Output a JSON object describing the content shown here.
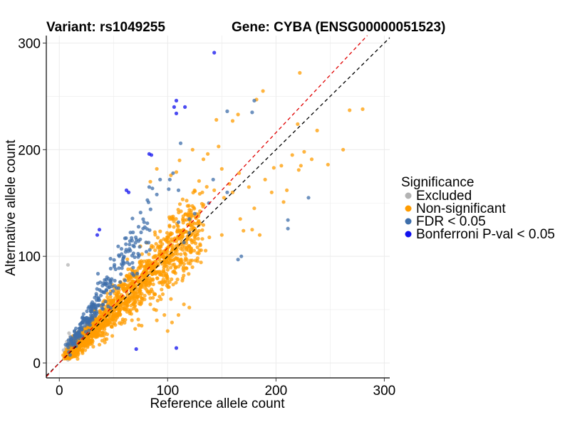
{
  "chart_data": {
    "type": "scatter",
    "title_left": "Variant: rs1049255",
    "title_right": "Gene: CYBA (ENSG00000051523)",
    "xlabel": "Reference allele count",
    "ylabel": "Alternative allele count",
    "xlim": [
      -12,
      305
    ],
    "ylim": [
      -14,
      307
    ],
    "xticks": [
      0,
      100,
      200,
      300
    ],
    "yticks": [
      0,
      100,
      200,
      300
    ],
    "grid": true,
    "legend_position": "right",
    "legend_title": "Significance",
    "reference_lines": [
      {
        "name": "identity",
        "slope": 1,
        "intercept": 0,
        "color": "#000000",
        "dash": "dashed"
      },
      {
        "name": "expected-ratio",
        "slope": 1.08,
        "intercept": 0,
        "color": "#e00000",
        "dash": "dashed"
      }
    ],
    "series": [
      {
        "name": "Excluded",
        "color": "#b3b3b3",
        "points": [
          [
            8,
            92
          ],
          [
            5,
            10
          ],
          [
            6,
            14
          ],
          [
            8,
            18
          ],
          [
            9,
            22
          ],
          [
            10,
            25
          ],
          [
            7,
            8
          ],
          [
            9,
            12
          ],
          [
            11,
            16
          ],
          [
            12,
            20
          ],
          [
            6,
            5
          ],
          [
            8,
            3
          ],
          [
            10,
            6
          ],
          [
            4,
            12
          ],
          [
            7,
            20
          ],
          [
            9,
            28
          ],
          [
            12,
            24
          ],
          [
            11,
            10
          ]
        ]
      },
      {
        "name": "Non-significant",
        "color": "#ff9c00",
        "generated": {
          "count": 1500,
          "x_range": [
            10,
            130
          ],
          "ratio_mean": 1.0,
          "ratio_sd": 0.16,
          "seed": 17
        },
        "points": [
          [
            222,
            272
          ],
          [
            220,
            224
          ],
          [
            223,
            185
          ],
          [
            280,
            238
          ],
          [
            268,
            237
          ],
          [
            262,
            200
          ],
          [
            248,
            186
          ],
          [
            238,
            218
          ],
          [
            233,
            191
          ],
          [
            221,
            181
          ],
          [
            210,
            162
          ],
          [
            207,
            151
          ],
          [
            198,
            183
          ],
          [
            188,
            255
          ],
          [
            182,
            247
          ],
          [
            165,
            233
          ],
          [
            160,
            227
          ],
          [
            145,
            228
          ],
          [
            147,
            203
          ],
          [
            137,
            196
          ],
          [
            133,
            191
          ],
          [
            123,
            200
          ],
          [
            111,
            190
          ],
          [
            108,
            179
          ],
          [
            103,
            176
          ],
          [
            90,
            182
          ],
          [
            84,
            170
          ],
          [
            157,
            168
          ],
          [
            150,
            182
          ],
          [
            166,
            178
          ],
          [
            175,
            165
          ],
          [
            160,
            160
          ],
          [
            152,
            155
          ],
          [
            143,
            162
          ],
          [
            132,
            160
          ],
          [
            167,
            135
          ],
          [
            178,
            125
          ],
          [
            180,
            145
          ],
          [
            196,
            160
          ],
          [
            215,
            195
          ],
          [
            226,
            198
          ],
          [
            205,
            185
          ],
          [
            190,
            172
          ],
          [
            170,
            124
          ],
          [
            150,
            120
          ],
          [
            185,
            120
          ],
          [
            120,
            52
          ],
          [
            115,
            55
          ],
          [
            110,
            45
          ],
          [
            100,
            30
          ],
          [
            97,
            45
          ],
          [
            90,
            40
          ],
          [
            104,
            38
          ],
          [
            76,
            35
          ],
          [
            70,
            32
          ],
          [
            84,
            55
          ],
          [
            103,
            60
          ]
        ]
      },
      {
        "name": "FDR < 0.05",
        "color": "#3e6eaa",
        "generated": {
          "count": 260,
          "x_range": [
            12,
            80
          ],
          "ratio_mean": 1.62,
          "ratio_sd": 0.18,
          "seed": 41
        },
        "points": [
          [
            155,
            236
          ],
          [
            178,
            235
          ],
          [
            180,
            246
          ],
          [
            211,
            134
          ],
          [
            211,
            126
          ],
          [
            230,
            155
          ],
          [
            112,
            206
          ],
          [
            90,
            158
          ],
          [
            83,
            165
          ],
          [
            101,
            163
          ],
          [
            102,
            172
          ],
          [
            105,
            178
          ],
          [
            110,
            162
          ],
          [
            93,
            172
          ],
          [
            168,
            100
          ],
          [
            165,
            97
          ],
          [
            155,
            160
          ],
          [
            142,
            172
          ],
          [
            138,
            150
          ],
          [
            125,
            140
          ],
          [
            120,
            135
          ],
          [
            110,
            132
          ],
          [
            120,
            122
          ],
          [
            115,
            113
          ]
        ]
      },
      {
        "name": "Bonferroni P-val < 0.05",
        "color": "#1010ee",
        "points": [
          [
            143,
            291
          ],
          [
            108,
            246
          ],
          [
            106,
            240
          ],
          [
            108,
            234
          ],
          [
            116,
            240
          ],
          [
            83,
            196
          ],
          [
            85,
            195
          ],
          [
            62,
            162
          ],
          [
            64,
            160
          ],
          [
            37,
            125
          ],
          [
            35,
            120
          ],
          [
            108,
            14
          ],
          [
            71,
            13
          ]
        ]
      }
    ]
  }
}
